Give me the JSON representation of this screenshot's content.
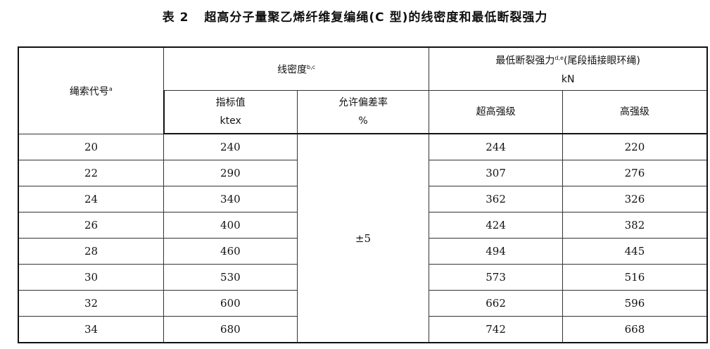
{
  "title": {
    "number": "表 2",
    "text": "超高分子量聚乙烯纤维复编绳(C 型)的线密度和最低断裂强力"
  },
  "header": {
    "rope_code": "绳索代号",
    "rope_code_note": "a",
    "linear_density": "线密度",
    "linear_density_note": "b,c",
    "breaking_force": "最低断裂强力",
    "breaking_force_note": "d,e",
    "breaking_force_suffix": "(尾段插接眼环绳)",
    "breaking_force_unit": "kN",
    "nominal": "指标值",
    "nominal_unit": "ktex",
    "tolerance": "允许偏差率",
    "tolerance_unit": "%",
    "ultra_high": "超高强级",
    "high": "高强级"
  },
  "tolerance_value": "±5",
  "rows": [
    {
      "code": "20",
      "ktex": "240",
      "ultra": "244",
      "high": "220"
    },
    {
      "code": "22",
      "ktex": "290",
      "ultra": "307",
      "high": "276"
    },
    {
      "code": "24",
      "ktex": "340",
      "ultra": "362",
      "high": "326"
    },
    {
      "code": "26",
      "ktex": "400",
      "ultra": "424",
      "high": "382"
    },
    {
      "code": "28",
      "ktex": "460",
      "ultra": "494",
      "high": "445"
    },
    {
      "code": "30",
      "ktex": "530",
      "ultra": "573",
      "high": "516"
    },
    {
      "code": "32",
      "ktex": "600",
      "ultra": "662",
      "high": "596"
    },
    {
      "code": "34",
      "ktex": "680",
      "ultra": "742",
      "high": "668"
    }
  ]
}
